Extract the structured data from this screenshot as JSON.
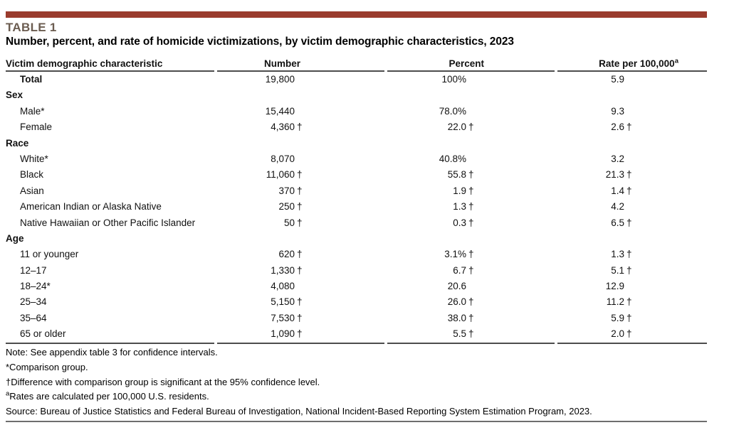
{
  "colors": {
    "accent_bar": "#9a3b2d",
    "table_label": "#6b5c50",
    "rule": "#4d4d4d"
  },
  "header": {
    "table_label": "TABLE 1",
    "title": "Number, percent, and rate of homicide victimizations, by victim demographic characteristics, 2023"
  },
  "table": {
    "columns": {
      "characteristic": "Victim demographic characteristic",
      "number": "Number",
      "percent": "Percent",
      "rate": "Rate per 100,000",
      "rate_superscript": "a"
    },
    "dagger_symbol": "†",
    "rows": [
      {
        "kind": "data",
        "label": "Total",
        "bold": true,
        "number": "19,800",
        "number_dag": "",
        "percent": "100%",
        "percent_dag": "",
        "rate": "5.9",
        "rate_dag": ""
      },
      {
        "kind": "section",
        "label": "Sex"
      },
      {
        "kind": "data",
        "label": "Male*",
        "bold": false,
        "number": "15,440",
        "number_dag": "",
        "percent": "78.0%",
        "percent_dag": "",
        "rate": "9.3",
        "rate_dag": ""
      },
      {
        "kind": "data",
        "label": "Female",
        "bold": false,
        "number": "4,360",
        "number_dag": "†",
        "percent": "22.0",
        "percent_dag": "†",
        "rate": "2.6",
        "rate_dag": "†"
      },
      {
        "kind": "section",
        "label": "Race"
      },
      {
        "kind": "data",
        "label": "White*",
        "bold": false,
        "number": "8,070",
        "number_dag": "",
        "percent": "40.8%",
        "percent_dag": "",
        "rate": "3.2",
        "rate_dag": ""
      },
      {
        "kind": "data",
        "label": "Black",
        "bold": false,
        "number": "11,060",
        "number_dag": "†",
        "percent": "55.8",
        "percent_dag": "†",
        "rate": "21.3",
        "rate_dag": "†"
      },
      {
        "kind": "data",
        "label": "Asian",
        "bold": false,
        "number": "370",
        "number_dag": "†",
        "percent": "1.9",
        "percent_dag": "†",
        "rate": "1.4",
        "rate_dag": "†"
      },
      {
        "kind": "data",
        "label": "American Indian or Alaska Native",
        "bold": false,
        "number": "250",
        "number_dag": "†",
        "percent": "1.3",
        "percent_dag": "†",
        "rate": "4.2",
        "rate_dag": ""
      },
      {
        "kind": "data",
        "label": "Native Hawaiian or Other Pacific Islander",
        "bold": false,
        "number": "50",
        "number_dag": "†",
        "percent": "0.3",
        "percent_dag": "†",
        "rate": "6.5",
        "rate_dag": "†"
      },
      {
        "kind": "section",
        "label": "Age"
      },
      {
        "kind": "data",
        "label": "11 or younger",
        "bold": false,
        "number": "620",
        "number_dag": "†",
        "percent": "3.1%",
        "percent_dag": "†",
        "rate": "1.3",
        "rate_dag": "†"
      },
      {
        "kind": "data",
        "label": "12–17",
        "bold": false,
        "number": "1,330",
        "number_dag": "†",
        "percent": "6.7",
        "percent_dag": "†",
        "rate": "5.1",
        "rate_dag": "†"
      },
      {
        "kind": "data",
        "label": "18–24*",
        "bold": false,
        "number": "4,080",
        "number_dag": "",
        "percent": "20.6",
        "percent_dag": "",
        "rate": "12.9",
        "rate_dag": ""
      },
      {
        "kind": "data",
        "label": "25–34",
        "bold": false,
        "number": "5,150",
        "number_dag": "†",
        "percent": "26.0",
        "percent_dag": "†",
        "rate": "11.2",
        "rate_dag": "†"
      },
      {
        "kind": "data",
        "label": "35–64",
        "bold": false,
        "number": "7,530",
        "number_dag": "†",
        "percent": "38.0",
        "percent_dag": "†",
        "rate": "5.9",
        "rate_dag": "†"
      },
      {
        "kind": "data",
        "label": "65 or older",
        "bold": false,
        "number": "1,090",
        "number_dag": "†",
        "percent": "5.5",
        "percent_dag": "†",
        "rate": "2.0",
        "rate_dag": "†"
      }
    ]
  },
  "notes": [
    {
      "sup": "",
      "text": "Note: See appendix table 3 for confidence intervals."
    },
    {
      "sup": "",
      "text": "*Comparison group."
    },
    {
      "sup": "",
      "text": "†Difference with comparison group is significant at the 95% confidence level."
    },
    {
      "sup": "a",
      "text": "Rates are calculated per 100,000 U.S. residents."
    },
    {
      "sup": "",
      "text": "Source: Bureau of Justice Statistics and Federal Bureau of Investigation, National Incident-Based Reporting System Estimation Program, 2023."
    }
  ]
}
